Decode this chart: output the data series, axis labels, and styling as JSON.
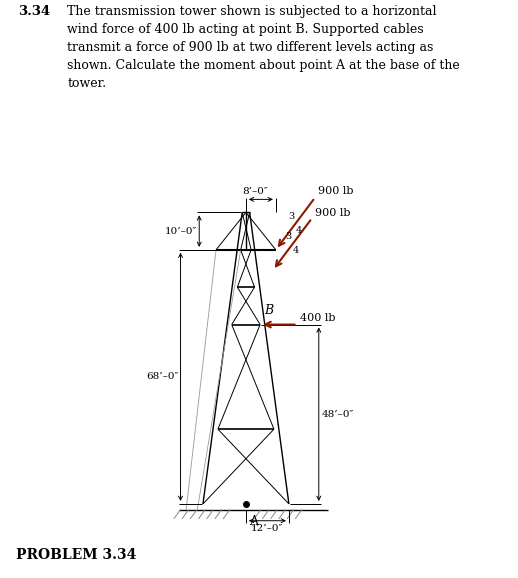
{
  "title_num": "3.34",
  "problem_text": "The transmission tower shown is subjected to a horizontal\nwind force of 400 lb acting at point B. Supported cables\ntransmit a force of 900 lb at two different levels acting as\nshown. Calculate the moment about point A at the base of the\ntower.",
  "bg_color": "#ffffff",
  "dim_8ft": "8’–0″",
  "dim_10ft": "10’–0″",
  "dim_12ft": "12’–0″",
  "dim_48ft": "48’–0″",
  "dim_68ft": "68’–0″",
  "label_A": "A",
  "label_B": "B",
  "label_900a": "900 lb",
  "label_900b": "900 lb",
  "label_400": "400 lb",
  "label_problem": "PROBLEM 3.34",
  "arrow_color": "#8B1A00",
  "line_color": "#000000",
  "dim_color": "#000000",
  "ground_hatch_color": "#888888",
  "wire_color": "#999999"
}
